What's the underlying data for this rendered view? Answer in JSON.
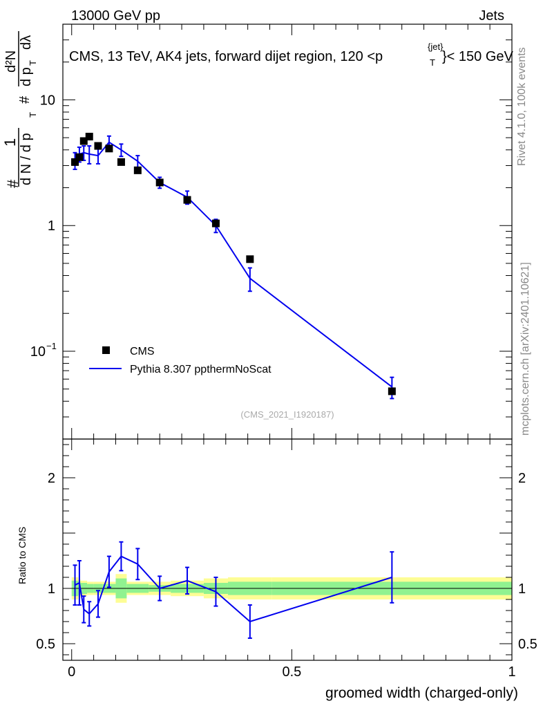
{
  "header": {
    "left": "13000 GeV pp",
    "right": "Jets"
  },
  "side_labels": {
    "rivet": "Rivet 4.1.0,  100k events",
    "mcplots": "mcplots.cern.ch [arXiv:2401.10621]"
  },
  "chart_data": [
    {
      "type": "scatter",
      "panel": "main",
      "title": "CMS, 13 TeV, AK4 jets, forward dijet region, 120 <p",
      "title_sup": "{jet}",
      "title_sub": "T",
      "title_tail": "}< 150 GeV",
      "analysis_tag": "(CMS_2021_I1920187)",
      "ylabel": {
        "frac_one": "1",
        "frac_den": "d N / d p",
        "hash": "#",
        "second_num": "d²N",
        "second_den": "d p",
        "lambda": "dλ",
        "T": "T"
      },
      "yscale": "log",
      "ylim": [
        0.02,
        40
      ],
      "xlim": [
        -0.02,
        1.0
      ],
      "y_ticks": [
        {
          "value": 10,
          "label": "10"
        },
        {
          "value": 1,
          "label": "1"
        },
        {
          "value": 0.1,
          "label": "10",
          "sup": "−1"
        }
      ],
      "legend": [
        {
          "name": "CMS",
          "marker": "square"
        },
        {
          "name": "Pythia 8.307 ppthermNoScat",
          "marker": "line"
        }
      ],
      "series": [
        {
          "name": "CMS",
          "color": "#000000",
          "x": [
            0.0075,
            0.0175,
            0.0275,
            0.04,
            0.06,
            0.085,
            0.1125,
            0.15,
            0.2,
            0.2625,
            0.3275,
            0.405,
            0.7275
          ],
          "y": [
            3.2,
            3.5,
            4.7,
            5.1,
            4.3,
            4.1,
            3.2,
            2.75,
            2.2,
            1.6,
            1.04,
            0.54,
            0.048
          ]
        },
        {
          "name": "Pythia 8.307 ppthermNoScat",
          "color": "#0000ee",
          "x": [
            0.0075,
            0.0175,
            0.0275,
            0.04,
            0.06,
            0.085,
            0.1125,
            0.15,
            0.2,
            0.2625,
            0.3275,
            0.405,
            0.7275
          ],
          "y": [
            3.3,
            3.7,
            3.8,
            3.7,
            3.6,
            4.6,
            4.0,
            3.25,
            2.2,
            1.68,
            1.0,
            0.38,
            0.052
          ],
          "err": [
            0.5,
            0.5,
            0.5,
            0.6,
            0.5,
            0.55,
            0.45,
            0.35,
            0.22,
            0.2,
            0.12,
            0.08,
            0.01
          ]
        }
      ]
    },
    {
      "type": "line",
      "panel": "ratio",
      "ylabel": "Ratio to CMS",
      "xlabel": "groomed width (charged-only)",
      "ylim": [
        0.35,
        2.35
      ],
      "xlim": [
        -0.02,
        1.0
      ],
      "y_ticks": [
        {
          "value": 0.5,
          "label": "0.5"
        },
        {
          "value": 1,
          "label": "1"
        },
        {
          "value": 2,
          "label": "2"
        }
      ],
      "x_ticks": [
        {
          "value": 0,
          "label": "0"
        },
        {
          "value": 0.5,
          "label": "0.5"
        },
        {
          "value": 1,
          "label": "1"
        }
      ],
      "bands": {
        "edges": [
          0.0,
          0.015,
          0.02,
          0.035,
          0.05,
          0.07,
          0.1,
          0.125,
          0.175,
          0.225,
          0.3,
          0.355,
          0.455,
          1.0
        ],
        "inner": [
          0.07,
          0.06,
          0.05,
          0.04,
          0.04,
          0.04,
          0.09,
          0.04,
          0.03,
          0.04,
          0.05,
          0.06,
          0.06
        ],
        "outer": [
          0.1,
          0.08,
          0.07,
          0.06,
          0.06,
          0.06,
          0.13,
          0.06,
          0.06,
          0.07,
          0.09,
          0.1,
          0.1
        ],
        "inner_color": "#90f290",
        "outer_color": "#fdfd95"
      },
      "series": [
        {
          "name": "Pythia 8.307 ppthermNoScat",
          "color": "#0000ee",
          "x": [
            0.0075,
            0.0175,
            0.0275,
            0.04,
            0.06,
            0.085,
            0.1125,
            0.15,
            0.2,
            0.2625,
            0.3275,
            0.405,
            0.7275
          ],
          "y": [
            1.03,
            1.05,
            0.81,
            0.77,
            0.86,
            1.15,
            1.29,
            1.22,
            1.0,
            1.07,
            0.97,
            0.7,
            1.1
          ],
          "err": [
            0.18,
            0.2,
            0.12,
            0.11,
            0.12,
            0.14,
            0.13,
            0.14,
            0.11,
            0.12,
            0.13,
            0.15,
            0.23
          ]
        }
      ]
    }
  ]
}
